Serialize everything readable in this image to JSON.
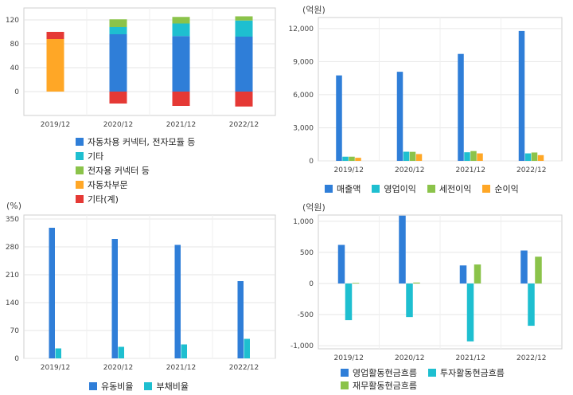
{
  "chart_data": [
    {
      "type": "bar",
      "stacked": true,
      "categories": [
        "2019/12",
        "2020/12",
        "2021/12",
        "2022/12"
      ],
      "ylim": [
        -40,
        140
      ],
      "yticks": [
        0,
        40,
        80,
        120
      ],
      "grid": true,
      "legend_position": "bottom",
      "series": [
        {
          "name": "자동차용 커넥터, 전자모듈 등",
          "color": "#2f7ed8",
          "values": [
            0,
            96,
            93,
            92
          ]
        },
        {
          "name": "기타",
          "color": "#1ebfd0",
          "values": [
            0,
            12,
            21,
            27
          ]
        },
        {
          "name": "전자용 커넥터 등",
          "color": "#8bc34a",
          "values": [
            0,
            13,
            11,
            7
          ]
        },
        {
          "name": "자동차부문",
          "color": "#ffa726",
          "values": [
            88,
            0,
            0,
            0
          ]
        },
        {
          "name": "기타(계)",
          "color": "#e53935",
          "values": [
            12,
            -20,
            -24,
            -25
          ]
        }
      ]
    },
    {
      "type": "bar",
      "unit": "(억원)",
      "categories": [
        "2019/12",
        "2020/12",
        "2021/12",
        "2022/12"
      ],
      "ylim": [
        0,
        13000
      ],
      "yticks": [
        0,
        3000,
        6000,
        9000,
        12000
      ],
      "ytick_labels": [
        "0",
        "3,000",
        "6,000",
        "9,000",
        "12,000"
      ],
      "grid": true,
      "legend_position": "bottom",
      "series": [
        {
          "name": "매출액",
          "color": "#2f7ed8",
          "values": [
            7750,
            8080,
            9700,
            11780
          ]
        },
        {
          "name": "영업이익",
          "color": "#1ebfd0",
          "values": [
            380,
            830,
            780,
            680
          ]
        },
        {
          "name": "세전이익",
          "color": "#8bc34a",
          "values": [
            380,
            820,
            890,
            760
          ]
        },
        {
          "name": "순이익",
          "color": "#ffa726",
          "values": [
            280,
            620,
            680,
            520
          ]
        }
      ]
    },
    {
      "type": "bar",
      "unit": "(%)",
      "categories": [
        "2019/12",
        "2020/12",
        "2021/12",
        "2022/12"
      ],
      "ylim": [
        0,
        360
      ],
      "yticks": [
        0,
        70,
        140,
        210,
        280,
        350
      ],
      "ytick_labels": [
        "0",
        "70",
        "140",
        "210",
        "280",
        "350"
      ],
      "grid": true,
      "legend_position": "bottom",
      "series": [
        {
          "name": "유동비율",
          "color": "#2f7ed8",
          "values": [
            328,
            300,
            285,
            194
          ]
        },
        {
          "name": "부채비율",
          "color": "#1ebfd0",
          "values": [
            25,
            29,
            35,
            49
          ]
        }
      ]
    },
    {
      "type": "bar",
      "unit": "(억원)",
      "categories": [
        "2019/12",
        "2020/12",
        "2021/12",
        "2022/12"
      ],
      "ylim": [
        -1050,
        1100
      ],
      "yticks": [
        -1000,
        -500,
        0,
        500,
        1000
      ],
      "ytick_labels": [
        "-1,000",
        "-500",
        "0",
        "500",
        "1,000"
      ],
      "grid": true,
      "legend_position": "bottom",
      "series": [
        {
          "name": "영업활동현금흐름",
          "color": "#2f7ed8",
          "values": [
            620,
            1090,
            290,
            530
          ]
        },
        {
          "name": "투자활동현금흐름",
          "color": "#1ebfd0",
          "values": [
            -590,
            -540,
            -930,
            -680
          ]
        },
        {
          "name": "재무활동현금흐름",
          "color": "#8bc34a",
          "values": [
            10,
            15,
            305,
            430
          ]
        }
      ]
    }
  ]
}
